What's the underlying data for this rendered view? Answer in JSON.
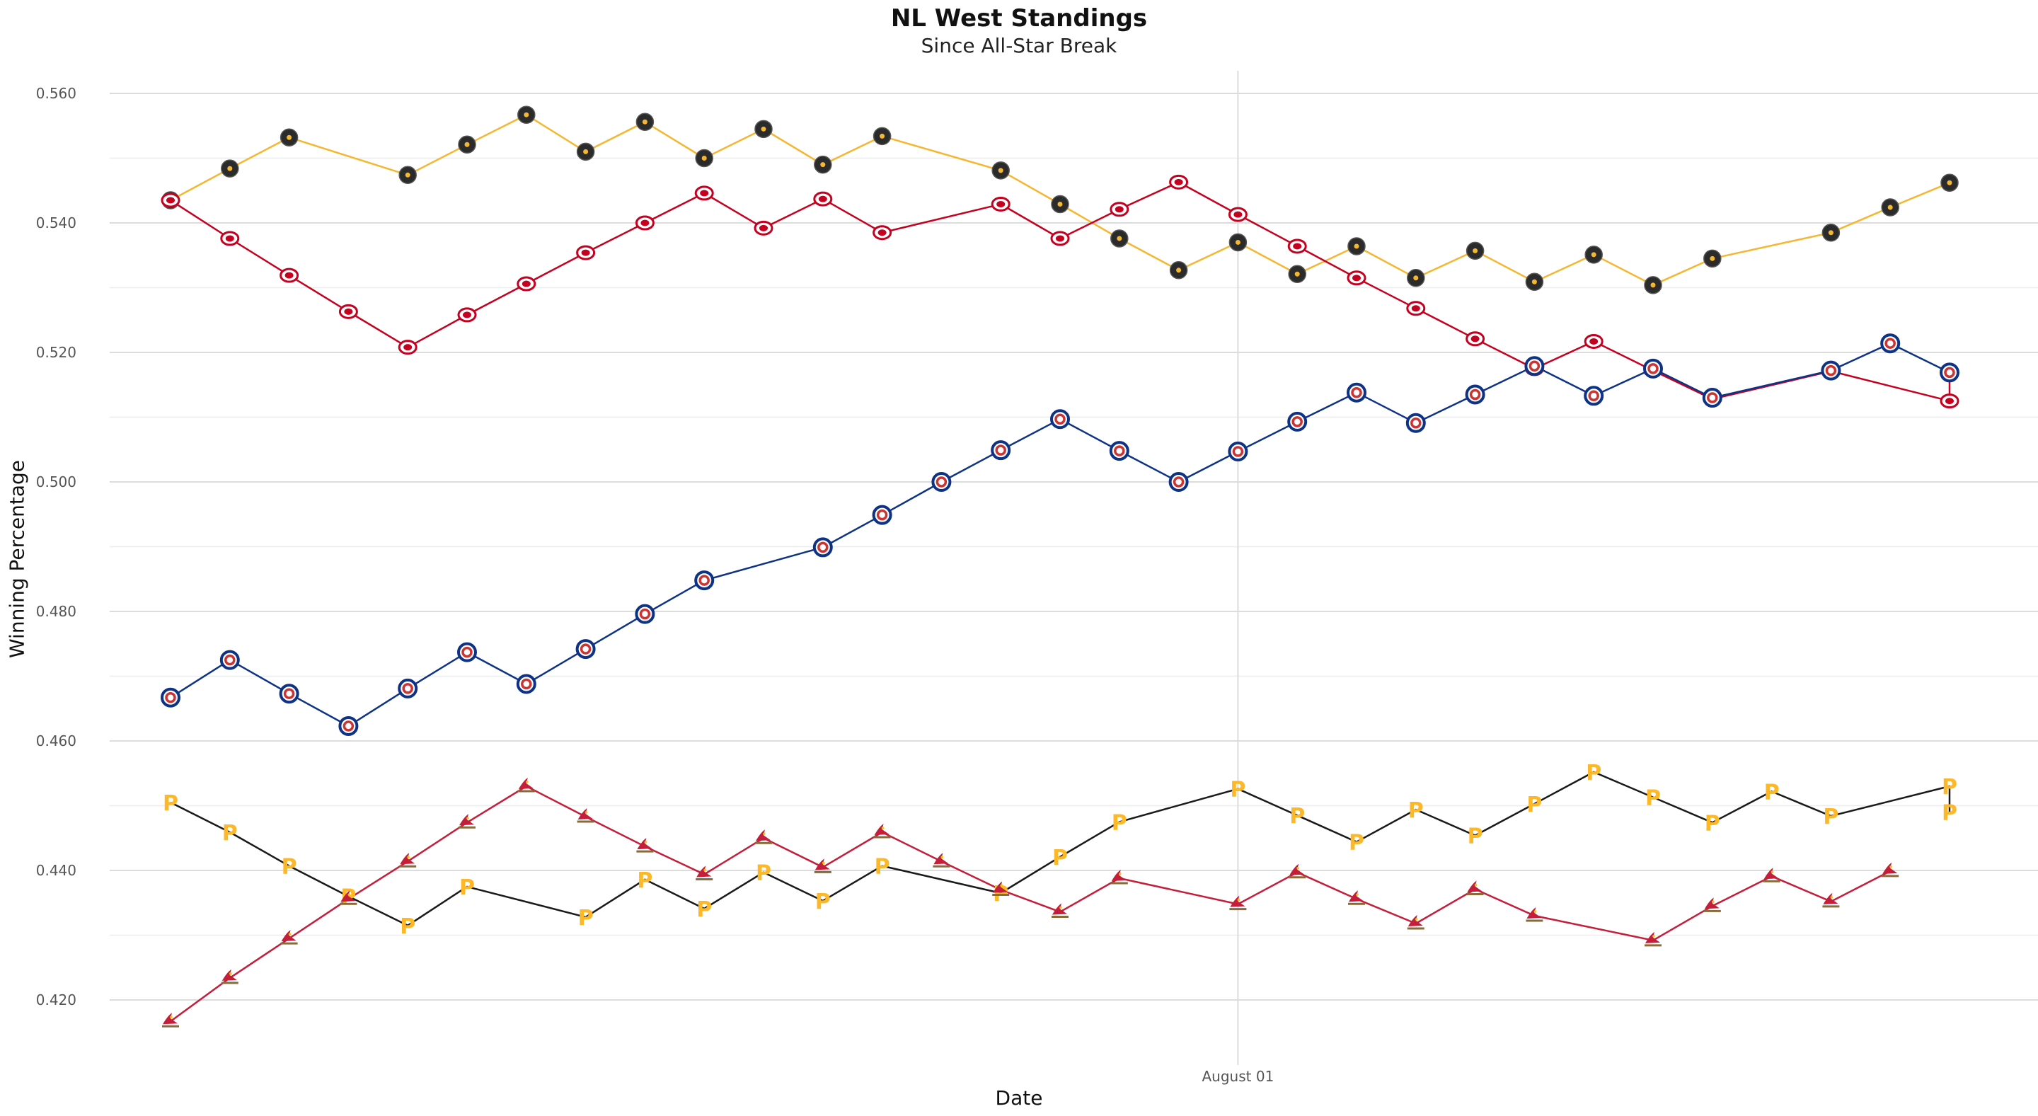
{
  "chart_data": {
    "type": "line",
    "title": "NL West Standings",
    "subtitle": "Since All-Star Break",
    "xlabel": "Date",
    "ylabel": "Winning Percentage",
    "x_tick_labels": [
      {
        "x": 18,
        "label": "August 01"
      }
    ],
    "y_ticks": [
      0.42,
      0.44,
      0.46,
      0.48,
      0.5,
      0.52,
      0.54,
      0.56
    ],
    "y_tick_labels": [
      "0.420",
      "0.440",
      "0.460",
      "0.480",
      "0.500",
      "0.520",
      "0.540",
      "0.560"
    ],
    "ylim": [
      0.41,
      0.563
    ],
    "xlim": [
      -1.3,
      31.5
    ],
    "grid": true,
    "legend": "none",
    "series": [
      {
        "line_color": "#F5B731",
        "marker": "dark-circle",
        "marker_fill": "#2b2b2b",
        "marker_accent": "#F5B731",
        "points": [
          [
            0,
            0.5435
          ],
          [
            1,
            0.5484
          ],
          [
            2,
            0.5532
          ],
          [
            4,
            0.5474
          ],
          [
            5,
            0.5521
          ],
          [
            6,
            0.5567
          ],
          [
            7,
            0.551
          ],
          [
            8,
            0.5556
          ],
          [
            9,
            0.55
          ],
          [
            10,
            0.5545
          ],
          [
            11,
            0.549
          ],
          [
            12,
            0.5534
          ],
          [
            14,
            0.5481
          ],
          [
            15,
            0.5429
          ],
          [
            16,
            0.5376
          ],
          [
            17,
            0.5327
          ],
          [
            18,
            0.537
          ],
          [
            19,
            0.5321
          ],
          [
            20,
            0.5364
          ],
          [
            21,
            0.5315
          ],
          [
            22,
            0.5357
          ],
          [
            23,
            0.5309
          ],
          [
            24,
            0.5351
          ],
          [
            25,
            0.5304
          ],
          [
            26,
            0.5345
          ],
          [
            28,
            0.5385
          ],
          [
            29,
            0.5424
          ],
          [
            30,
            0.5462
          ]
        ]
      },
      {
        "line_color": "#C6011F",
        "marker": "red-oval",
        "marker_fill": "#ffffff",
        "marker_accent": "#C6011F",
        "points": [
          [
            0,
            0.5435
          ],
          [
            1,
            0.5376
          ],
          [
            2,
            0.5319
          ],
          [
            3,
            0.5263
          ],
          [
            4,
            0.5208
          ],
          [
            5,
            0.5258
          ],
          [
            6,
            0.5306
          ],
          [
            7,
            0.5354
          ],
          [
            8,
            0.54
          ],
          [
            9,
            0.5446
          ],
          [
            10,
            0.5392
          ],
          [
            11,
            0.5437
          ],
          [
            12,
            0.5385
          ],
          [
            14,
            0.5429
          ],
          [
            15,
            0.5376
          ],
          [
            16,
            0.5421
          ],
          [
            17,
            0.5463
          ],
          [
            18,
            0.5413
          ],
          [
            19,
            0.5364
          ],
          [
            20,
            0.5315
          ],
          [
            21,
            0.5268
          ],
          [
            22,
            0.5221
          ],
          [
            23,
            0.5175
          ],
          [
            24,
            0.5217
          ],
          [
            25,
            0.5172
          ],
          [
            26,
            0.5128
          ],
          [
            28,
            0.5171
          ],
          [
            30,
            0.5125
          ],
          [
            30,
            0.5168
          ]
        ]
      },
      {
        "line_color": "#0E3386",
        "marker": "blue-ring",
        "marker_fill": "#ffffff",
        "marker_accent": "#CC3433",
        "points": [
          [
            0,
            0.4667
          ],
          [
            1,
            0.4725
          ],
          [
            2,
            0.4673
          ],
          [
            3,
            0.4623
          ],
          [
            4,
            0.4681
          ],
          [
            5,
            0.4737
          ],
          [
            6,
            0.4688
          ],
          [
            7,
            0.4742
          ],
          [
            8,
            0.4796
          ],
          [
            9,
            0.4848
          ],
          [
            11,
            0.4899
          ],
          [
            12,
            0.4949
          ],
          [
            13,
            0.5
          ],
          [
            14,
            0.5049
          ],
          [
            15,
            0.5097
          ],
          [
            16,
            0.5048
          ],
          [
            17,
            0.5
          ],
          [
            18,
            0.5047
          ],
          [
            19,
            0.5093
          ],
          [
            20,
            0.5138
          ],
          [
            21,
            0.5091
          ],
          [
            22,
            0.5135
          ],
          [
            23,
            0.5179
          ],
          [
            24,
            0.5133
          ],
          [
            25,
            0.5175
          ],
          [
            26,
            0.513
          ],
          [
            28,
            0.5172
          ],
          [
            29,
            0.5214
          ],
          [
            30,
            0.5169
          ]
        ]
      },
      {
        "line_color": "#1a1a1a",
        "marker": "letter-P",
        "marker_fill": "#FDB827",
        "marker_accent": "#FDB827",
        "points": [
          [
            0,
            0.4505
          ],
          [
            1,
            0.4459
          ],
          [
            2,
            0.4407
          ],
          [
            3,
            0.436
          ],
          [
            4,
            0.4315
          ],
          [
            5,
            0.4375
          ],
          [
            7,
            0.4328
          ],
          [
            8,
            0.4386
          ],
          [
            9,
            0.4341
          ],
          [
            10,
            0.4397
          ],
          [
            11,
            0.4353
          ],
          [
            12,
            0.4407
          ],
          [
            14,
            0.4365
          ],
          [
            15,
            0.4421
          ],
          [
            16,
            0.4475
          ],
          [
            18,
            0.4526
          ],
          [
            19,
            0.4485
          ],
          [
            20,
            0.4444
          ],
          [
            21,
            0.4494
          ],
          [
            22,
            0.4454
          ],
          [
            23,
            0.4503
          ],
          [
            24,
            0.4552
          ],
          [
            25,
            0.4513
          ],
          [
            26,
            0.4474
          ],
          [
            27,
            0.4522
          ],
          [
            28,
            0.4484
          ],
          [
            30,
            0.453
          ],
          [
            30,
            0.449
          ]
        ]
      },
      {
        "line_color": "#C41E3A",
        "marker": "cardinal-bird",
        "marker_fill": "#C41E3A",
        "marker_accent": "#F5C518",
        "points": [
          [
            0,
            0.4167
          ],
          [
            1,
            0.4234
          ],
          [
            2,
            0.4295
          ],
          [
            3,
            0.4356
          ],
          [
            4,
            0.4414
          ],
          [
            5,
            0.4474
          ],
          [
            6,
            0.453
          ],
          [
            7,
            0.4483
          ],
          [
            8,
            0.4437
          ],
          [
            9,
            0.4394
          ],
          [
            10,
            0.445
          ],
          [
            11,
            0.4405
          ],
          [
            12,
            0.4459
          ],
          [
            13,
            0.4414
          ],
          [
            14,
            0.437
          ],
          [
            15,
            0.4336
          ],
          [
            16,
            0.4388
          ],
          [
            18,
            0.4348
          ],
          [
            19,
            0.4397
          ],
          [
            20,
            0.4356
          ],
          [
            21,
            0.4318
          ],
          [
            22,
            0.4371
          ],
          [
            23,
            0.433
          ],
          [
            25,
            0.4292
          ],
          [
            26,
            0.4345
          ],
          [
            27,
            0.4391
          ],
          [
            28,
            0.4352
          ],
          [
            29,
            0.4399
          ]
        ]
      }
    ]
  }
}
